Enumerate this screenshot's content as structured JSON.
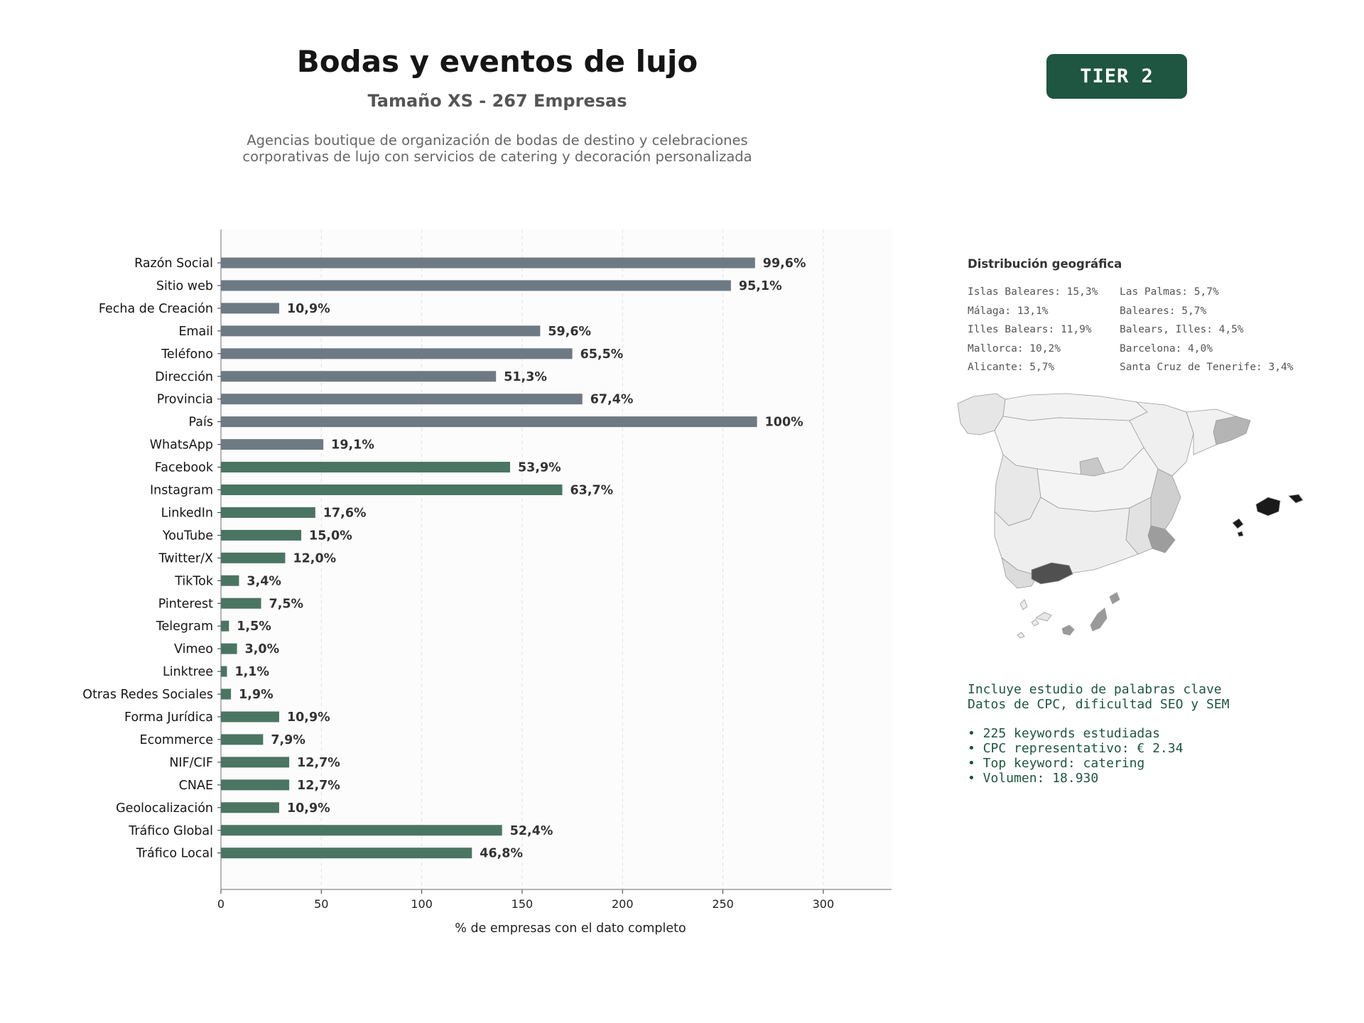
{
  "header": {
    "title": "Bodas y eventos de lujo",
    "subtitle": "Tamaño XS - 267 Empresas",
    "description": "Agencias boutique de organización de bodas de destino y celebraciones corporativas de lujo con servicios de catering y decoración personalizada",
    "tier_label": "TIER 2"
  },
  "colors": {
    "gray_bar": "#6e7a83",
    "green_bar": "#4a7563",
    "tier_bg": "#1e5641",
    "keyword_text": "#1e5641"
  },
  "chart_data": {
    "type": "bar",
    "orientation": "horizontal",
    "xlabel": "% de empresas con el dato completo",
    "xlim": [
      0,
      334
    ],
    "xticks": [
      0,
      50,
      100,
      150,
      200,
      250,
      300
    ],
    "grid": "x dashed",
    "categories": [
      "Razón Social",
      "Sitio web",
      "Fecha de Creación",
      "Email",
      "Teléfono",
      "Dirección",
      "Provincia",
      "País",
      "WhatsApp",
      "Facebook",
      "Instagram",
      "LinkedIn",
      "YouTube",
      "Twitter/X",
      "TikTok",
      "Pinterest",
      "Telegram",
      "Vimeo",
      "Linktree",
      "Otras Redes Sociales",
      "Forma Jurídica",
      "Ecommerce",
      "NIF/CIF",
      "CNAE",
      "Geolocalización",
      "Tráfico Global",
      "Tráfico Local"
    ],
    "values": [
      266,
      254,
      29,
      159,
      175,
      137,
      180,
      267,
      51,
      144,
      170,
      47,
      40,
      32,
      9,
      20,
      4,
      8,
      3,
      5,
      29,
      21,
      34,
      34,
      29,
      140,
      125
    ],
    "labels": [
      "99,6%",
      "95,1%",
      "10,9%",
      "59,6%",
      "65,5%",
      "51,3%",
      "67,4%",
      "100%",
      "19,1%",
      "53,9%",
      "63,7%",
      "17,6%",
      "15,0%",
      "12,0%",
      "3,4%",
      "7,5%",
      "1,5%",
      "3,0%",
      "1,1%",
      "1,9%",
      "10,9%",
      "7,9%",
      "12,7%",
      "12,7%",
      "10,9%",
      "52,4%",
      "46,8%"
    ],
    "color_groups": [
      "gray",
      "gray",
      "gray",
      "gray",
      "gray",
      "gray",
      "gray",
      "gray",
      "gray",
      "green",
      "green",
      "green",
      "green",
      "green",
      "green",
      "green",
      "green",
      "green",
      "green",
      "green",
      "green",
      "green",
      "green",
      "green",
      "green",
      "green",
      "green"
    ]
  },
  "geo": {
    "title": "Distribución geográfica",
    "items": [
      "Islas Baleares: 15,3%",
      "Las Palmas: 5,7%",
      "Málaga: 13,1%",
      "Baleares: 5,7%",
      "Illes Balears: 11,9%",
      "Balears, Illes: 4,5%",
      "Mallorca: 10,2%",
      "Barcelona: 4,0%",
      "Alicante: 5,7%",
      "Santa Cruz de Tenerife: 3,4%"
    ]
  },
  "keywords": {
    "line1": "Incluye estudio de palabras clave",
    "line2": "Datos de CPC, dificultad SEO y SEM",
    "bullets": [
      "• 225 keywords estudiadas",
      "• CPC representativo: € 2.34",
      "• Top keyword: catering",
      "• Volumen: 18.930"
    ]
  }
}
